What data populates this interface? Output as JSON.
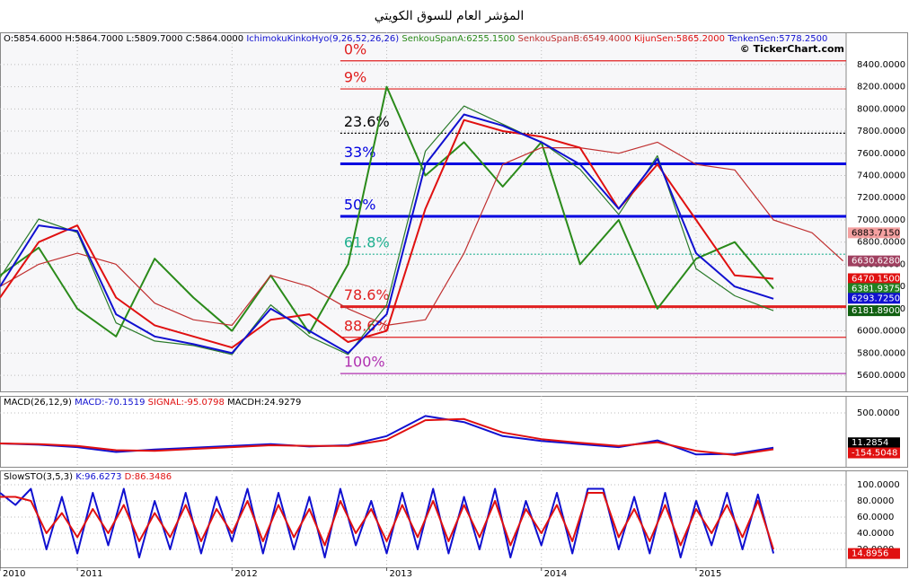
{
  "title": "المؤشر العام للسوق الكويتي",
  "chart_data": [
    {
      "type": "line",
      "ohlc_labels": [
        "O:5854.6000",
        "H:5864.7000",
        "L:5809.7000",
        "C:5864.0000"
      ],
      "indicator": "IchimokuKinkoHyo(9,26,52,26,26)",
      "watermark": "© TickerChart.com",
      "x": [
        2010.5,
        2010.75,
        2011,
        2011.25,
        2011.5,
        2011.75,
        2012,
        2012.25,
        2012.5,
        2012.75,
        2013,
        2013.25,
        2013.5,
        2013.75,
        2014,
        2014.25,
        2014.5,
        2014.75,
        2015,
        2015.25,
        2015.5,
        2015.75,
        2015.95
      ],
      "xlim": [
        2010.5,
        2015.97
      ],
      "xticks": [
        {
          "value": 2010.5,
          "label": "2010"
        },
        2011,
        2012,
        2013,
        2014,
        2015
      ],
      "ylim": [
        5455,
        8690
      ],
      "yticks": [
        {
          "value": 5600,
          "label": "5600.0000"
        },
        {
          "value": 5800,
          "label": "5800.0000"
        },
        {
          "value": 6000,
          "label": "6000.0000"
        },
        {
          "value": 6200,
          "label": "6200.0000"
        },
        {
          "value": 6400,
          "label": "6400.0000"
        },
        {
          "value": 6600,
          "label": "6600.0000"
        },
        {
          "value": 6800,
          "label": "6800.0000"
        },
        {
          "value": 7000,
          "label": "7000.0000"
        },
        {
          "value": 7200,
          "label": "7200.0000"
        },
        {
          "value": 7400,
          "label": "7400.0000"
        },
        {
          "value": 7600,
          "label": "7600.0000"
        },
        {
          "value": 7800,
          "label": "7800.0000"
        },
        {
          "value": 8000,
          "label": "8000.0000"
        },
        {
          "value": 8200,
          "label": "8200.0000"
        },
        {
          "value": 8400,
          "label": "8400.0000"
        }
      ],
      "grid": true,
      "series": [
        {
          "color": "#2a7a2a",
          "width": 1.2,
          "values": [
            6479,
            7008,
            6886,
            6072,
            5909,
            5868,
            5787,
            6235,
            5950,
            5787,
            6235,
            7619,
            8026,
            7863,
            7700,
            7456,
            7049,
            7578,
            6560,
            6316,
            6182,
            null,
            null
          ]
        },
        {
          "name": "SenkouSpanA:6255.1500",
          "color": "#2a8a1a",
          "width": 2,
          "values": [
            6500,
            6750,
            6200,
            5950,
            6650,
            6300,
            6000,
            6500,
            5980,
            6600,
            8200,
            7400,
            7700,
            7300,
            7700,
            6600,
            7000,
            6200,
            6650,
            6800,
            6380,
            null,
            null
          ]
        },
        {
          "name": "SenkouSpanB:6549.4000",
          "color": "#c03030",
          "width": 1.2,
          "values": [
            6400,
            6600,
            6700,
            6600,
            6250,
            6100,
            6050,
            6500,
            6400,
            6200,
            6050,
            6100,
            6700,
            7500,
            7650,
            7650,
            7600,
            7700,
            7500,
            7450,
            7000,
            6884,
            6630
          ]
        },
        {
          "name": "KijunSen:5865.2000",
          "color": "#e01010",
          "width": 2,
          "values": [
            6300,
            6800,
            6950,
            6300,
            6050,
            5950,
            5850,
            6100,
            6150,
            5900,
            6000,
            7100,
            7900,
            7800,
            7750,
            7650,
            7100,
            7500,
            7000,
            6500,
            6470,
            null,
            null
          ]
        },
        {
          "name": "TenkenSen:5778.2500",
          "color": "#1010d0",
          "width": 2,
          "values": [
            6400,
            6950,
            6900,
            6150,
            5950,
            5880,
            5800,
            6200,
            6000,
            5800,
            6150,
            7500,
            7950,
            7850,
            7700,
            7500,
            7100,
            7550,
            6700,
            6400,
            6290,
            null,
            null
          ]
        }
      ],
      "fib_start_x": 2012.7,
      "fib_levels": [
        {
          "label": "0%",
          "value": 8433,
          "color": "#e02020"
        },
        {
          "label": "9%",
          "value": 8180,
          "color": "#e02020"
        },
        {
          "label": "23.6%",
          "value": 7781,
          "color": "#000000"
        },
        {
          "label": "33%",
          "value": 7505,
          "color": "#0000e0"
        },
        {
          "label": "50%",
          "value": 7032,
          "color": "#0000e0"
        },
        {
          "label": "61.8%",
          "value": 6691,
          "color": "#20b090"
        },
        {
          "label": "78.6%",
          "value": 6218,
          "color": "#e02020"
        },
        {
          "label": "88.6%",
          "value": 5942,
          "color": "#e02020"
        },
        {
          "label": "100%",
          "value": 5616,
          "color": "#b030b0"
        }
      ],
      "tags": [
        {
          "value": 6883.715,
          "label": "6883.7150",
          "color": "#f4a0a0",
          "text_color": "#000000"
        },
        {
          "value": 6630.628,
          "label": "6630.6280",
          "color": "#a04060",
          "text_color": "#ffffff"
        },
        {
          "value": 6470.15,
          "label": "6470.1500",
          "color": "#e01010",
          "text_color": "#ffffff"
        },
        {
          "value": 6381.9375,
          "color": "#208020",
          "text_color": "#ffffff"
        },
        {
          "value": 6293.725,
          "label": "6293.7250",
          "color": "#1010d0",
          "text_color": "#ffffff"
        },
        {
          "value": 6181.89,
          "label": "6181.8900",
          "color": "#106010",
          "text_color": "#ffffff"
        }
      ]
    },
    {
      "type": "line",
      "indicator": "MACD(26,12,9)",
      "labels": [
        "MACDH:24.9279"
      ],
      "x": [
        2010.5,
        2010.75,
        2011,
        2011.25,
        2011.5,
        2011.75,
        2012,
        2012.25,
        2012.5,
        2012.75,
        2013,
        2013.25,
        2013.5,
        2013.75,
        2014,
        2014.25,
        2014.5,
        2014.75,
        2015,
        2015.25,
        2015.5
      ],
      "xlim": [
        2010.5,
        2015.97
      ],
      "ylim": [
        -382,
        779
      ],
      "yticks": [
        {
          "value": 500,
          "label": "500.0000"
        }
      ],
      "grid": true,
      "series": [
        {
          "name": "MACD:-70.1519",
          "color": "#1010d0",
          "width": 2,
          "values": [
            0,
            -20,
            -60,
            -140,
            -100,
            -70,
            -40,
            -10,
            -50,
            -30,
            120,
            450,
            350,
            120,
            40,
            -10,
            -60,
            50,
            -180,
            -170,
            -70
          ]
        },
        {
          "name": "SIGNAL:-95.0798",
          "color": "#e01010",
          "width": 2,
          "values": [
            0,
            -10,
            -40,
            -110,
            -120,
            -90,
            -60,
            -30,
            -40,
            -40,
            60,
            380,
            400,
            180,
            70,
            10,
            -40,
            20,
            -120,
            -190,
            -95
          ]
        }
      ],
      "tags": [
        {
          "value": 11.2854,
          "color": "#000000",
          "text_color": "#ffffff"
        },
        {
          "value": -154.5048,
          "color": "#e01010",
          "text_color": "#ffffff"
        }
      ]
    },
    {
      "type": "line",
      "indicator": "SlowSTO(3,5,3)",
      "x": [
        2010.5,
        2010.6,
        2010.7,
        2010.8,
        2010.9,
        2011,
        2011.1,
        2011.2,
        2011.3,
        2011.4,
        2011.5,
        2011.6,
        2011.7,
        2011.8,
        2011.9,
        2012,
        2012.1,
        2012.2,
        2012.3,
        2012.4,
        2012.5,
        2012.6,
        2012.7,
        2012.8,
        2012.9,
        2013,
        2013.1,
        2013.2,
        2013.3,
        2013.4,
        2013.5,
        2013.6,
        2013.7,
        2013.8,
        2013.9,
        2014,
        2014.1,
        2014.2,
        2014.3,
        2014.4,
        2014.5,
        2014.6,
        2014.7,
        2014.8,
        2014.9,
        2015,
        2015.1,
        2015.2,
        2015.3,
        2015.4,
        2015.5
      ],
      "xlim": [
        2010.5,
        2015.97
      ],
      "ylim": [
        -2.2,
        117.8
      ],
      "yticks": [
        {
          "value": 20,
          "label": "20.0000"
        },
        {
          "value": 40,
          "label": "40.0000"
        },
        {
          "value": 60,
          "label": "60.0000"
        },
        {
          "value": 80,
          "label": "80.0000"
        },
        {
          "value": 100,
          "label": "100.0000"
        }
      ],
      "grid": true,
      "series": [
        {
          "name": "K:96.6273",
          "color": "#1010d0",
          "width": 2,
          "values": [
            90,
            75,
            95,
            20,
            85,
            15,
            90,
            25,
            95,
            10,
            80,
            20,
            90,
            15,
            85,
            30,
            95,
            15,
            90,
            20,
            85,
            10,
            95,
            25,
            80,
            15,
            90,
            20,
            95,
            15,
            85,
            20,
            95,
            10,
            80,
            25,
            90,
            15,
            95,
            95,
            20,
            85,
            15,
            90,
            10,
            80,
            25,
            90,
            20,
            88,
            15
          ]
        },
        {
          "name": "D:86.3486",
          "color": "#e01010",
          "width": 2,
          "values": [
            85,
            85,
            80,
            40,
            65,
            35,
            70,
            40,
            75,
            30,
            65,
            35,
            75,
            30,
            70,
            40,
            80,
            30,
            75,
            35,
            70,
            25,
            80,
            40,
            70,
            30,
            75,
            35,
            80,
            30,
            75,
            35,
            80,
            25,
            70,
            40,
            75,
            30,
            90,
            90,
            35,
            70,
            30,
            75,
            25,
            70,
            40,
            75,
            35,
            80,
            20
          ]
        }
      ],
      "tags": [
        {
          "value": 14.8956,
          "color": "#e01010",
          "text_color": "#ffffff"
        }
      ]
    }
  ]
}
